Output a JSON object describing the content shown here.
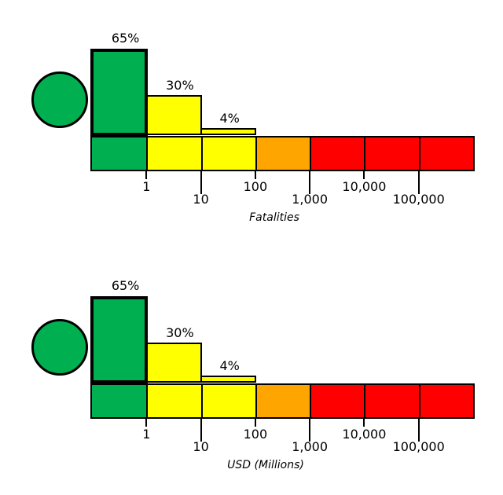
{
  "figure": {
    "background": "#ffffff",
    "colors": {
      "green": "#00B050",
      "yellow": "#FFFF00",
      "orange": "#FFA500",
      "red": "#FF0000",
      "outline": "#000000"
    }
  },
  "chart_data": [
    {
      "type": "bar",
      "xlabel": "Fatalities",
      "x_scale": "log",
      "x_range": [
        0.1,
        1000000
      ],
      "marker": {
        "shape": "circle",
        "color": "green"
      },
      "bars": [
        {
          "label": "65%",
          "value": 65,
          "x_from": 0.1,
          "x_to": 1,
          "color": "green",
          "highlight": true
        },
        {
          "label": "30%",
          "value": 30,
          "x_from": 1,
          "x_to": 10,
          "color": "yellow",
          "highlight": false
        },
        {
          "label": "4%",
          "value": 4,
          "x_from": 10,
          "x_to": 100,
          "color": "yellow",
          "highlight": false
        }
      ],
      "severity_scale": [
        {
          "x_from": 0.1,
          "x_to": 1,
          "color": "green"
        },
        {
          "x_from": 1,
          "x_to": 10,
          "color": "yellow"
        },
        {
          "x_from": 10,
          "x_to": 100,
          "color": "yellow"
        },
        {
          "x_from": 100,
          "x_to": 1000,
          "color": "orange"
        },
        {
          "x_from": 1000,
          "x_to": 10000,
          "color": "red"
        },
        {
          "x_from": 10000,
          "x_to": 100000,
          "color": "red"
        },
        {
          "x_from": 100000,
          "x_to": 1000000,
          "color": "red"
        }
      ],
      "x_ticks": [
        {
          "value": 1,
          "label": "1",
          "row": "upper"
        },
        {
          "value": 10,
          "label": "10",
          "row": "lower"
        },
        {
          "value": 100,
          "label": "100",
          "row": "upper"
        },
        {
          "value": 1000,
          "label": "1,000",
          "row": "lower"
        },
        {
          "value": 10000,
          "label": "10,000",
          "row": "upper"
        },
        {
          "value": 100000,
          "label": "100,000",
          "row": "lower"
        }
      ]
    },
    {
      "type": "bar",
      "xlabel": "USD (Millions)",
      "x_scale": "log",
      "x_range": [
        0.1,
        1000000
      ],
      "marker": {
        "shape": "circle",
        "color": "green"
      },
      "bars": [
        {
          "label": "65%",
          "value": 65,
          "x_from": 0.1,
          "x_to": 1,
          "color": "green",
          "highlight": true
        },
        {
          "label": "30%",
          "value": 30,
          "x_from": 1,
          "x_to": 10,
          "color": "yellow",
          "highlight": false
        },
        {
          "label": "4%",
          "value": 4,
          "x_from": 10,
          "x_to": 100,
          "color": "yellow",
          "highlight": false
        }
      ],
      "severity_scale": [
        {
          "x_from": 0.1,
          "x_to": 1,
          "color": "green"
        },
        {
          "x_from": 1,
          "x_to": 10,
          "color": "yellow"
        },
        {
          "x_from": 10,
          "x_to": 100,
          "color": "yellow"
        },
        {
          "x_from": 100,
          "x_to": 1000,
          "color": "orange"
        },
        {
          "x_from": 1000,
          "x_to": 10000,
          "color": "red"
        },
        {
          "x_from": 10000,
          "x_to": 100000,
          "color": "red"
        },
        {
          "x_from": 100000,
          "x_to": 1000000,
          "color": "red"
        }
      ],
      "x_ticks": [
        {
          "value": 1,
          "label": "1",
          "row": "upper"
        },
        {
          "value": 10,
          "label": "10",
          "row": "lower"
        },
        {
          "value": 100,
          "label": "100",
          "row": "upper"
        },
        {
          "value": 1000,
          "label": "1,000",
          "row": "lower"
        },
        {
          "value": 10000,
          "label": "10,000",
          "row": "upper"
        },
        {
          "value": 100000,
          "label": "100,000",
          "row": "lower"
        }
      ]
    }
  ]
}
